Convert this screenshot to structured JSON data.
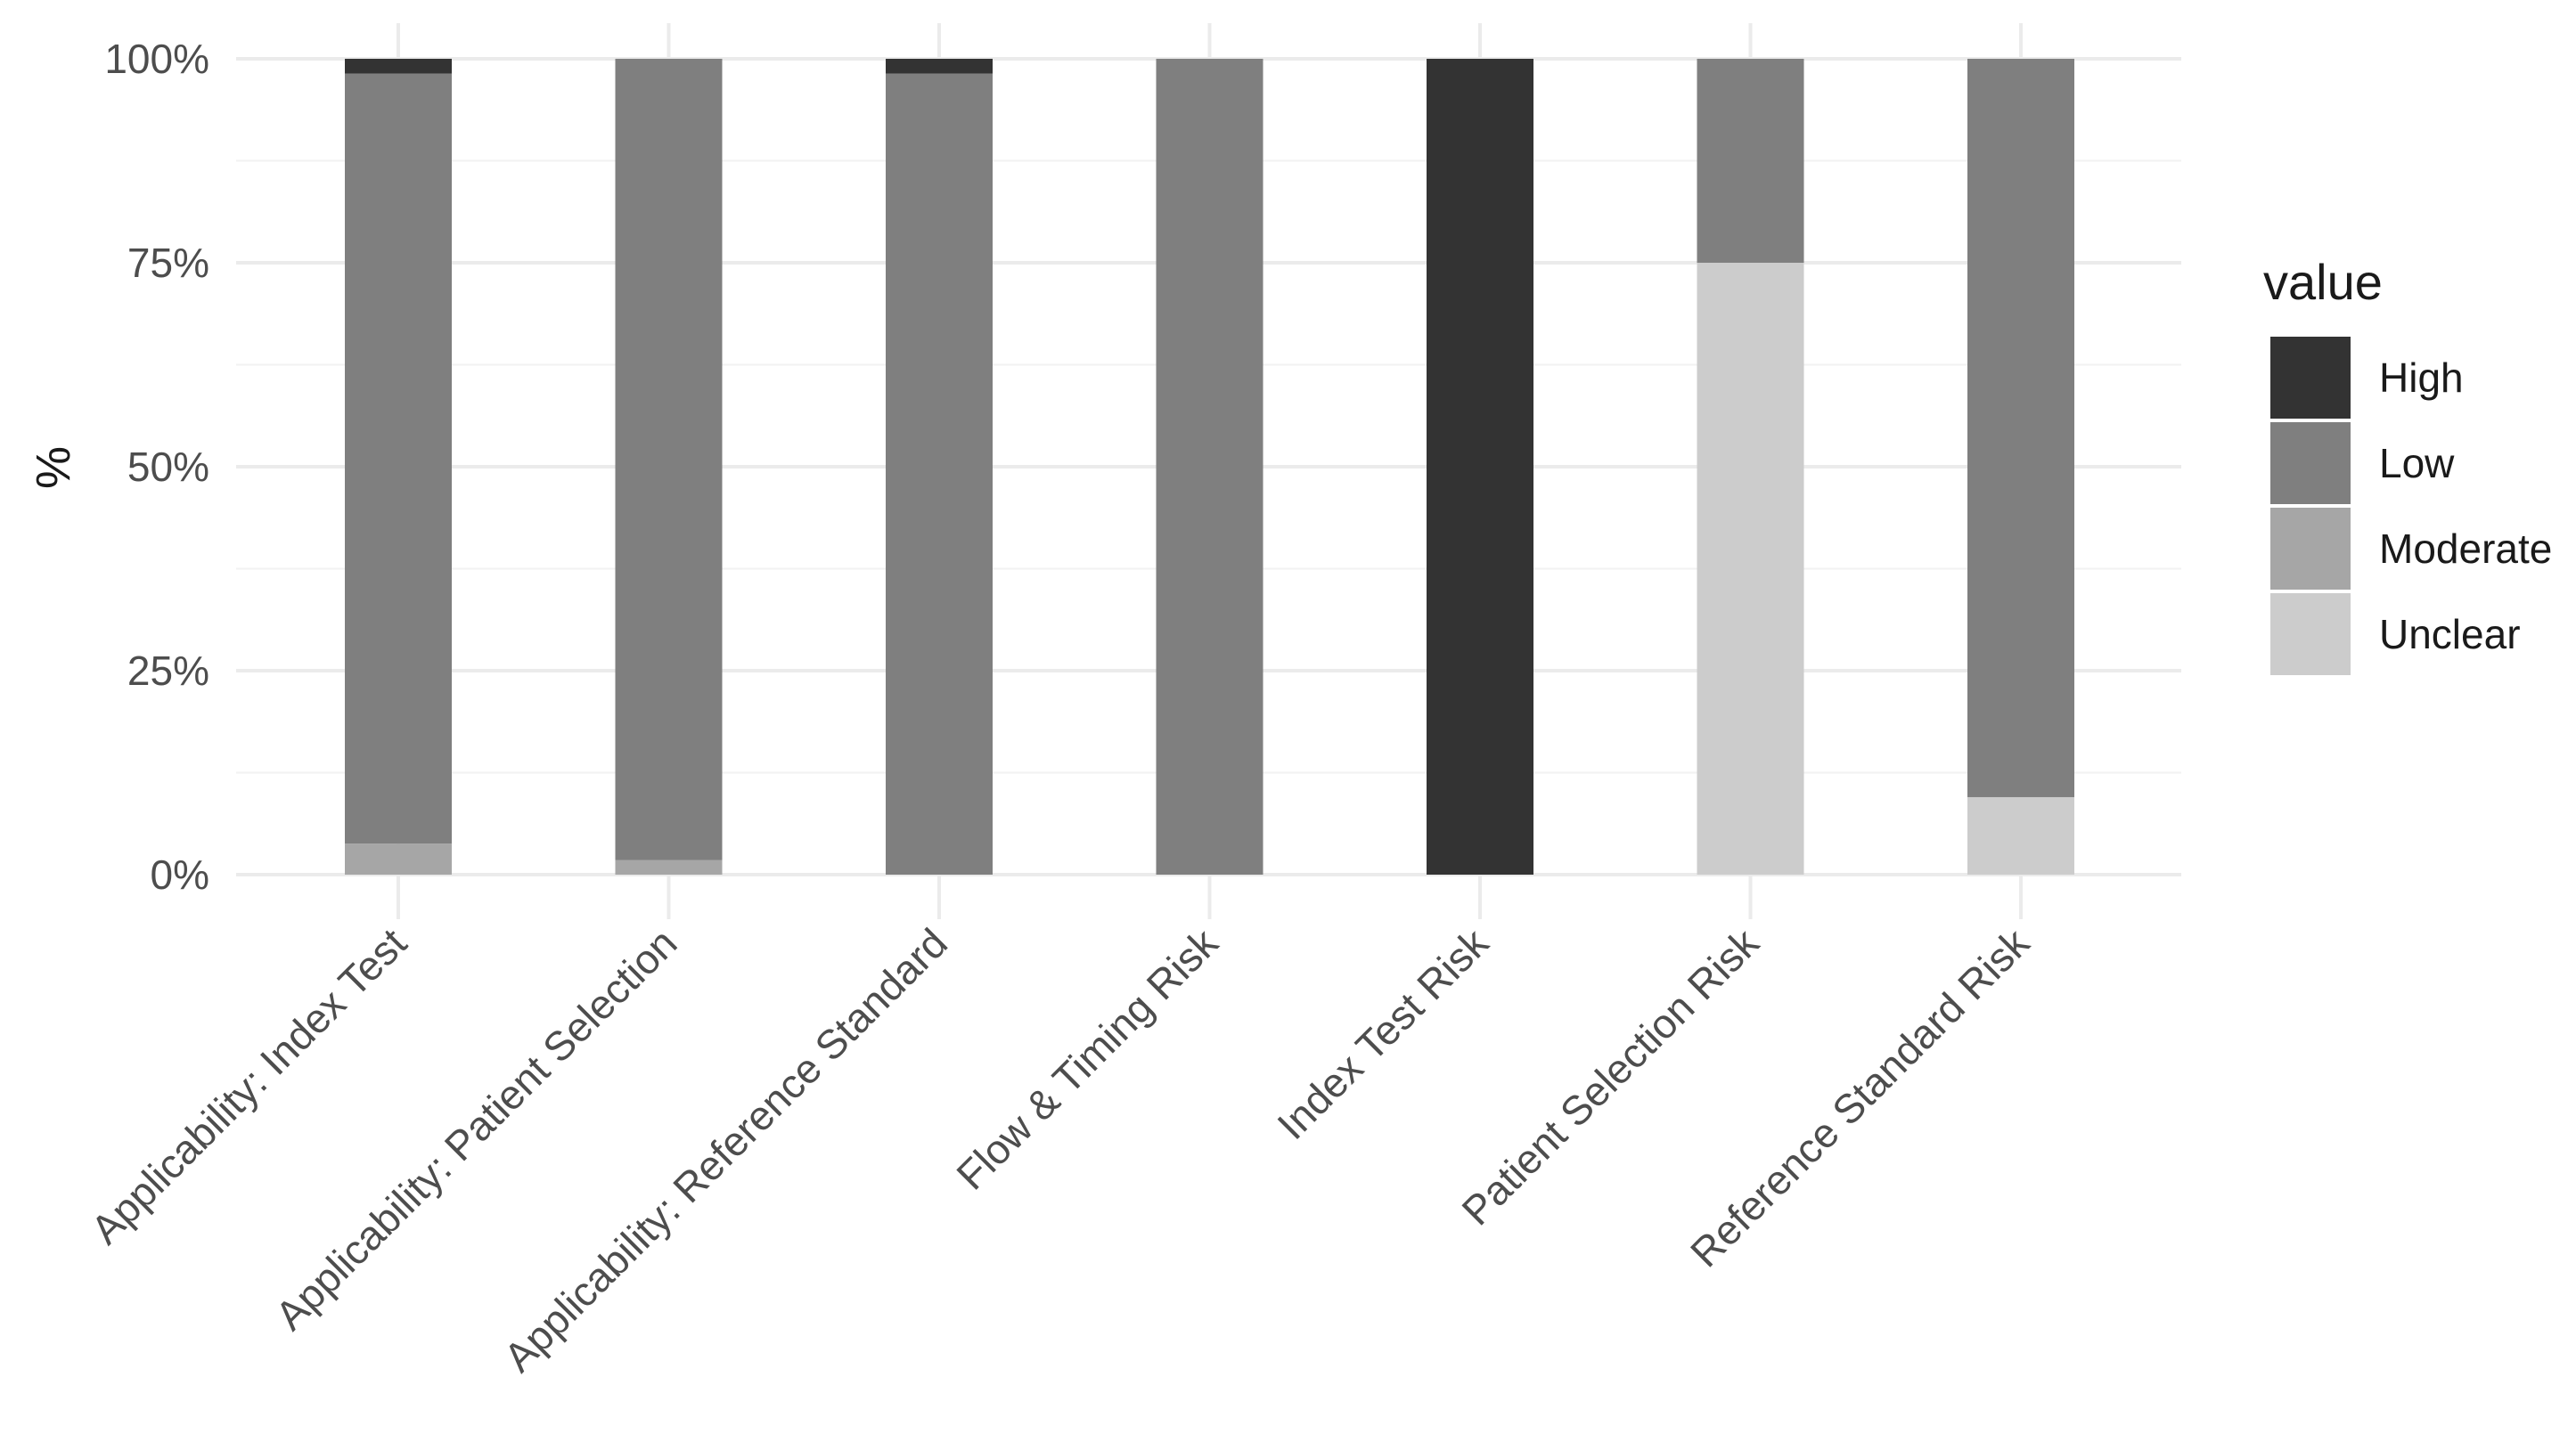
{
  "chart_data": {
    "type": "bar",
    "stacked": true,
    "categories": [
      "Applicability: Index Test",
      "Applicability: Patient Selection",
      "Applicability: Reference Standard",
      "Flow & Timing Risk",
      "Index Test Risk",
      "Patient Selection Risk",
      "Reference Standard Risk"
    ],
    "series": [
      {
        "name": "Unclear",
        "color": "#cccccc",
        "values": [
          0,
          0,
          0,
          0,
          0,
          75,
          9.5
        ]
      },
      {
        "name": "Moderate",
        "color": "#a6a6a6",
        "values": [
          3.8,
          1.8,
          0,
          0,
          0,
          0,
          0
        ]
      },
      {
        "name": "Low",
        "color": "#7f7f7f",
        "values": [
          94.4,
          98.2,
          98.2,
          100,
          0,
          25,
          90.5
        ]
      },
      {
        "name": "High",
        "color": "#333333",
        "values": [
          1.8,
          0,
          1.8,
          0,
          100,
          0,
          0
        ]
      }
    ],
    "ylabel": "%",
    "xlabel": "",
    "ylim": [
      0,
      100
    ],
    "yticks": [
      0,
      25,
      50,
      75,
      100
    ],
    "ytick_labels": [
      "0%",
      "25%",
      "50%",
      "75%",
      "100%"
    ],
    "legend": {
      "title": "value",
      "position": "right",
      "entries": [
        {
          "label": "High",
          "color": "#333333"
        },
        {
          "label": "Low",
          "color": "#7f7f7f"
        },
        {
          "label": "Moderate",
          "color": "#a6a6a6"
        },
        {
          "label": "Unclear",
          "color": "#cccccc"
        }
      ]
    },
    "grid": true
  }
}
